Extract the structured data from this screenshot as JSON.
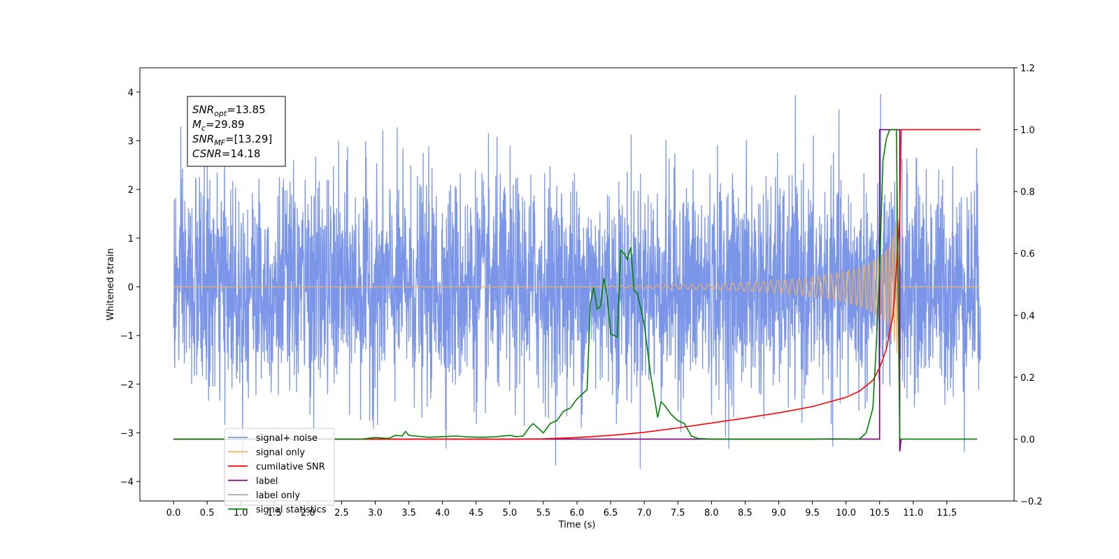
{
  "chart_data": {
    "type": "line",
    "title": "",
    "xlabel": "Time (s)",
    "ylabel_left": "Whitened strain",
    "ylabel_right": "",
    "xlim": [
      -0.5,
      12.5
    ],
    "ylim_left": [
      -4.4,
      4.5
    ],
    "ylim_right": [
      -0.2,
      1.2
    ],
    "x_ticks": [
      0.0,
      0.5,
      1.0,
      1.5,
      2.0,
      2.5,
      3.0,
      3.5,
      4.0,
      4.5,
      5.0,
      5.5,
      6.0,
      6.5,
      7.0,
      7.5,
      8.0,
      8.5,
      9.0,
      9.5,
      10.0,
      10.5,
      11.0,
      11.5
    ],
    "x_tick_labels": [
      "0.0",
      "0.5",
      "1.0",
      "1.5",
      "2.0",
      "2.5",
      "3.0",
      "3.5",
      "4.0",
      "4.5",
      "5.0",
      "5.5",
      "6.0",
      "6.5",
      "7.0",
      "7.5",
      "8.0",
      "8.5",
      "9.0",
      "9.5",
      "10.0",
      "10.5",
      "11.0",
      "11.5"
    ],
    "y_left_ticks": [
      -4,
      -3,
      -2,
      -1,
      0,
      1,
      2,
      3,
      4
    ],
    "y_left_tick_labels": [
      "−4",
      "−3",
      "−2",
      "−1",
      "0",
      "1",
      "2",
      "3",
      "4"
    ],
    "y_right_ticks": [
      -0.2,
      0.0,
      0.2,
      0.4,
      0.6,
      0.8,
      1.0,
      1.2
    ],
    "y_right_tick_labels": [
      "−0.2",
      "0.0",
      "0.2",
      "0.4",
      "0.6",
      "0.8",
      "1.0",
      "1.2"
    ],
    "grid": false,
    "legend_position": "lower-left",
    "annotation": {
      "lines": [
        {
          "sym": "SNR",
          "sub": "opt",
          "rest": "=13.85"
        },
        {
          "sym": "M",
          "sub": "c",
          "rest": "=29.89"
        },
        {
          "sym": "SNR",
          "sub": "MF",
          "rest": "=[13.29]"
        },
        {
          "sym": "CSNR",
          "sub": "",
          "rest": "=14.18"
        }
      ]
    },
    "series": [
      {
        "name": "signal+ noise",
        "axis": "left",
        "color": "#7b96e8",
        "x_range": [
          0.0,
          12.0
        ],
        "typical_amplitude": 1.3,
        "max": 4.1,
        "min": -4.0,
        "description_type": "noise"
      },
      {
        "name": "signal only",
        "axis": "left",
        "color": "#f0b060",
        "x_range": [
          0.0,
          12.0
        ],
        "chirp_start": 6.5,
        "merger": 10.8,
        "peak_amplitude": 1.4
      },
      {
        "name": "cumilative SNR",
        "axis": "right",
        "color": "#ff0000",
        "x": [
          0.0,
          5.0,
          5.5,
          6.0,
          6.5,
          7.0,
          7.5,
          8.0,
          8.5,
          9.0,
          9.5,
          10.0,
          10.2,
          10.4,
          10.5,
          10.6,
          10.7,
          10.75,
          10.8,
          10.82,
          12.0
        ],
        "y": [
          0.0,
          0.0,
          0.001,
          0.005,
          0.012,
          0.022,
          0.036,
          0.052,
          0.068,
          0.085,
          0.105,
          0.135,
          0.155,
          0.19,
          0.23,
          0.29,
          0.4,
          0.55,
          0.72,
          1.0,
          1.0
        ]
      },
      {
        "name": "label",
        "axis": "right",
        "color": "#7b007b",
        "x": [
          0.0,
          10.5,
          10.5,
          10.8,
          10.8,
          10.82
        ],
        "y": [
          0.0,
          0.0,
          1.0,
          1.0,
          -0.04,
          0.0
        ]
      },
      {
        "name": "label only",
        "axis": "right",
        "color": "#aaaaaa",
        "x": [],
        "y": []
      },
      {
        "name": "signal statistics",
        "axis": "right",
        "color": "#008000",
        "x": [
          0.0,
          2.8,
          3.0,
          3.2,
          3.3,
          3.4,
          3.45,
          3.5,
          3.6,
          3.8,
          4.0,
          4.2,
          4.4,
          4.6,
          4.8,
          5.0,
          5.1,
          5.2,
          5.3,
          5.35,
          5.4,
          5.5,
          5.6,
          5.7,
          5.8,
          5.9,
          6.0,
          6.1,
          6.15,
          6.2,
          6.25,
          6.3,
          6.35,
          6.4,
          6.45,
          6.5,
          6.6,
          6.65,
          6.7,
          6.75,
          6.8,
          6.85,
          6.9,
          7.0,
          7.1,
          7.2,
          7.25,
          7.3,
          7.4,
          7.5,
          7.6,
          7.7,
          7.8,
          8.0,
          9.5,
          9.8,
          10.2,
          10.3,
          10.4,
          10.45,
          10.5,
          10.55,
          10.6,
          10.65,
          10.7,
          10.75,
          10.8,
          10.82,
          11.95
        ],
        "y": [
          0.0,
          0.0,
          0.005,
          0.002,
          0.012,
          0.01,
          0.025,
          0.012,
          0.01,
          0.006,
          0.008,
          0.01,
          0.007,
          0.006,
          0.008,
          0.012,
          0.008,
          0.01,
          0.04,
          0.05,
          0.04,
          0.02,
          0.05,
          0.06,
          0.09,
          0.1,
          0.13,
          0.15,
          0.16,
          0.44,
          0.49,
          0.42,
          0.43,
          0.52,
          0.46,
          0.34,
          0.33,
          0.61,
          0.6,
          0.58,
          0.62,
          0.48,
          0.47,
          0.37,
          0.2,
          0.07,
          0.12,
          0.11,
          0.08,
          0.06,
          0.05,
          0.01,
          0.002,
          0.0,
          0.0,
          0.001,
          0.0,
          0.02,
          0.1,
          0.3,
          0.55,
          0.9,
          0.97,
          1.0,
          1.0,
          1.0,
          0.001,
          0.0,
          0.0
        ]
      }
    ]
  }
}
